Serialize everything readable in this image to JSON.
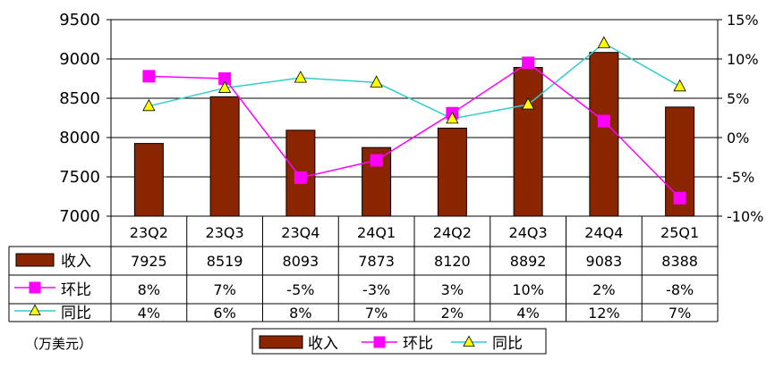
{
  "chart_data": {
    "type": "bar",
    "categories": [
      "23Q2",
      "23Q3",
      "23Q4",
      "24Q1",
      "24Q2",
      "24Q3",
      "24Q4",
      "25Q1"
    ],
    "series": [
      {
        "name": "收入",
        "kind": "bar",
        "axis": "left",
        "color": "#8B2500",
        "values": [
          7925,
          8519,
          8093,
          7873,
          8120,
          8892,
          9083,
          8388
        ],
        "table_values": [
          "7925",
          "8519",
          "8093",
          "7873",
          "8120",
          "8892",
          "9083",
          "8388"
        ]
      },
      {
        "name": "环比",
        "kind": "line",
        "axis": "right",
        "color": "#FF00FF",
        "marker": "square",
        "values": [
          7.8,
          7.5,
          -5.1,
          -2.9,
          3.1,
          9.5,
          2.1,
          -7.7
        ],
        "table_values": [
          "8%",
          "7%",
          "-5%",
          "-3%",
          "3%",
          "10%",
          "2%",
          "-8%"
        ]
      },
      {
        "name": "同比",
        "kind": "line",
        "axis": "right",
        "color": "#33CCCC",
        "marker": "triangle",
        "marker_fill": "#FFFF00",
        "values": [
          4.0,
          6.3,
          7.6,
          7.0,
          2.4,
          4.2,
          12.0,
          6.5
        ],
        "table_values": [
          "4%",
          "6%",
          "8%",
          "7%",
          "2%",
          "4%",
          "12%",
          "7%"
        ]
      }
    ],
    "y_left": {
      "min": 7000,
      "max": 9500,
      "ticks": [
        "7000",
        "7500",
        "8000",
        "8500",
        "9000",
        "9500"
      ]
    },
    "y_right": {
      "min": -10,
      "max": 15,
      "ticks": [
        "-10%",
        "-5%",
        "0%",
        "5%",
        "10%",
        "15%"
      ]
    },
    "unit_label": "（万美元）",
    "legend_position": "bottom",
    "grid": "horizontal"
  }
}
